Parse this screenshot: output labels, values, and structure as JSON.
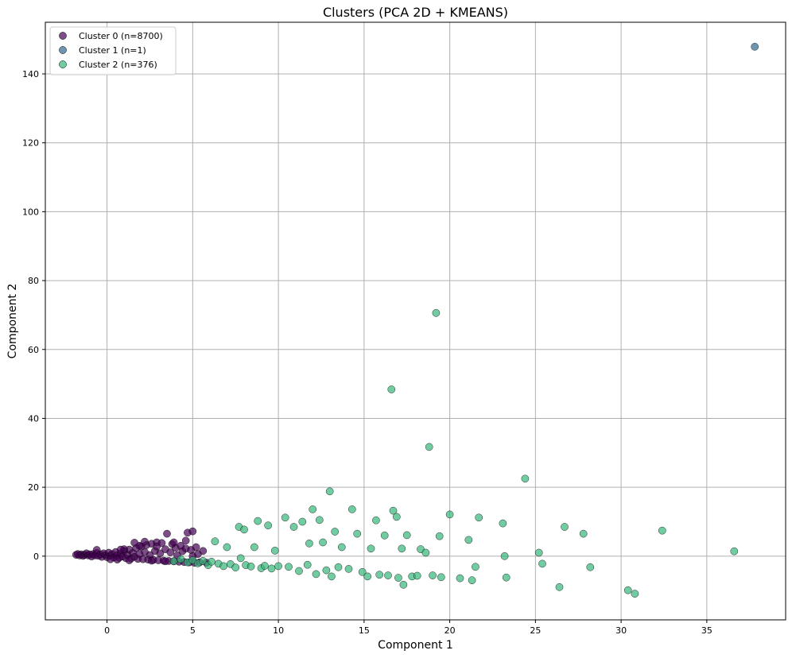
{
  "chart_data": {
    "type": "scatter",
    "title": "Clusters (PCA 2D + KMEANS)",
    "xlabel": "Component 1",
    "ylabel": "Component 2",
    "xlim": [
      -3.6,
      39.6
    ],
    "ylim": [
      -18.5,
      155
    ],
    "xticks": [
      0,
      5,
      10,
      15,
      20,
      25,
      30,
      35
    ],
    "yticks": [
      0,
      20,
      40,
      60,
      80,
      100,
      120,
      140
    ],
    "grid": true,
    "legend_position": "top-left",
    "series": [
      {
        "name": "Cluster 0 (n=8700)",
        "color": "#440154",
        "points": [
          [
            -1.8,
            0.4
          ],
          [
            -1.7,
            0.6
          ],
          [
            -1.6,
            0.2
          ],
          [
            -1.5,
            0.5
          ],
          [
            -1.4,
            0.1
          ],
          [
            -1.3,
            0.4
          ],
          [
            -1.2,
            0.8
          ],
          [
            -1.1,
            0.2
          ],
          [
            -1.0,
            0.5
          ],
          [
            -0.9,
            -0.1
          ],
          [
            -0.8,
            0.6
          ],
          [
            -0.7,
            0.2
          ],
          [
            -0.6,
            0.9
          ],
          [
            -0.5,
            0.1
          ],
          [
            -0.4,
            0.5
          ],
          [
            -0.3,
            -0.2
          ],
          [
            -0.2,
            0.8
          ],
          [
            -0.1,
            0.3
          ],
          [
            0.0,
            -0.3
          ],
          [
            0.1,
            1.0
          ],
          [
            0.2,
            0.1
          ],
          [
            0.3,
            0.6
          ],
          [
            0.4,
            -0.4
          ],
          [
            0.5,
            1.2
          ],
          [
            0.6,
            0.2
          ],
          [
            0.7,
            -0.5
          ],
          [
            0.8,
            0.8
          ],
          [
            0.9,
            -0.1
          ],
          [
            1.0,
            1.5
          ],
          [
            1.1,
            -0.6
          ],
          [
            1.2,
            0.4
          ],
          [
            1.3,
            1.9
          ],
          [
            1.4,
            -0.7
          ],
          [
            1.5,
            0.9
          ],
          [
            1.6,
            -0.2
          ],
          [
            1.7,
            2.3
          ],
          [
            1.8,
            -0.8
          ],
          [
            1.9,
            0.6
          ],
          [
            2.0,
            2.8
          ],
          [
            2.1,
            -0.9
          ],
          [
            2.2,
            1.2
          ],
          [
            2.3,
            3.2
          ],
          [
            2.4,
            -1.0
          ],
          [
            2.5,
            0.3
          ],
          [
            2.6,
            3.6
          ],
          [
            2.7,
            -1.1
          ],
          [
            2.8,
            1.5
          ],
          [
            2.9,
            4.0
          ],
          [
            3.0,
            -1.2
          ],
          [
            3.1,
            0.8
          ],
          [
            3.2,
            3.8
          ],
          [
            3.3,
            -1.3
          ],
          [
            3.4,
            2.0
          ],
          [
            3.5,
            6.5
          ],
          [
            3.6,
            -1.4
          ],
          [
            3.7,
            1.1
          ],
          [
            3.8,
            3.5
          ],
          [
            3.9,
            -1.5
          ],
          [
            4.0,
            2.4
          ],
          [
            4.1,
            0.2
          ],
          [
            4.2,
            -1.6
          ],
          [
            4.3,
            3.0
          ],
          [
            4.4,
            1.4
          ],
          [
            4.5,
            -1.7
          ],
          [
            4.6,
            2.2
          ],
          [
            4.7,
            6.8
          ],
          [
            4.8,
            -1.8
          ],
          [
            4.9,
            1.8
          ],
          [
            5.0,
            7.2
          ],
          [
            5.1,
            -1.9
          ],
          [
            5.2,
            2.6
          ],
          [
            5.3,
            0.6
          ],
          [
            5.4,
            -1.8
          ],
          [
            5.6,
            1.5
          ],
          [
            5.8,
            -1.9
          ],
          [
            -0.6,
            1.8
          ],
          [
            0.2,
            -0.9
          ],
          [
            1.0,
            2.0
          ],
          [
            1.6,
            3.9
          ],
          [
            2.2,
            4.2
          ],
          [
            0.6,
            -1.0
          ],
          [
            1.3,
            -1.2
          ],
          [
            2.6,
            -1.3
          ],
          [
            3.4,
            -1.5
          ],
          [
            0.8,
            1.9
          ],
          [
            1.9,
            3.0
          ],
          [
            2.9,
            2.8
          ],
          [
            3.9,
            4.0
          ],
          [
            4.6,
            4.5
          ],
          [
            5.0,
            0.0
          ]
        ]
      },
      {
        "name": "Cluster 1 (n=1)",
        "color": "#31688e",
        "points": [
          [
            37.8,
            147.9
          ]
        ]
      },
      {
        "name": "Cluster 2 (n=376)",
        "color": "#35b779",
        "points": [
          [
            3.9,
            -1.5
          ],
          [
            4.3,
            -0.9
          ],
          [
            4.7,
            -1.8
          ],
          [
            5.0,
            -1.2
          ],
          [
            5.3,
            -2.1
          ],
          [
            5.6,
            -1.4
          ],
          [
            5.9,
            -2.6
          ],
          [
            6.1,
            -1.6
          ],
          [
            6.3,
            4.3
          ],
          [
            6.5,
            -2.2
          ],
          [
            6.8,
            -2.9
          ],
          [
            7.0,
            2.6
          ],
          [
            7.2,
            -2.3
          ],
          [
            7.5,
            -3.3
          ],
          [
            7.7,
            8.5
          ],
          [
            7.8,
            -0.6
          ],
          [
            8.0,
            7.7
          ],
          [
            8.1,
            -2.6
          ],
          [
            8.4,
            -3.0
          ],
          [
            8.6,
            2.6
          ],
          [
            8.8,
            10.2
          ],
          [
            9.0,
            -3.5
          ],
          [
            9.2,
            -2.8
          ],
          [
            9.4,
            8.9
          ],
          [
            9.6,
            -3.6
          ],
          [
            9.8,
            1.6
          ],
          [
            10.0,
            -2.9
          ],
          [
            10.4,
            11.2
          ],
          [
            10.6,
            -3.1
          ],
          [
            10.9,
            8.5
          ],
          [
            11.2,
            -4.3
          ],
          [
            11.4,
            10.0
          ],
          [
            11.7,
            -2.5
          ],
          [
            11.8,
            3.7
          ],
          [
            12.0,
            13.6
          ],
          [
            12.2,
            -5.2
          ],
          [
            12.4,
            10.5
          ],
          [
            12.6,
            4.0
          ],
          [
            12.8,
            -4.1
          ],
          [
            13.0,
            18.8
          ],
          [
            13.1,
            -5.9
          ],
          [
            13.3,
            7.1
          ],
          [
            13.5,
            -3.2
          ],
          [
            13.7,
            2.6
          ],
          [
            14.1,
            -3.7
          ],
          [
            14.3,
            13.6
          ],
          [
            14.6,
            6.5
          ],
          [
            14.9,
            -4.6
          ],
          [
            15.2,
            -5.9
          ],
          [
            15.4,
            2.2
          ],
          [
            15.7,
            10.4
          ],
          [
            15.9,
            -5.4
          ],
          [
            16.2,
            6.0
          ],
          [
            16.4,
            -5.6
          ],
          [
            16.6,
            48.4
          ],
          [
            16.7,
            13.2
          ],
          [
            16.9,
            11.4
          ],
          [
            17.0,
            -6.3
          ],
          [
            17.2,
            2.2
          ],
          [
            17.3,
            -8.3
          ],
          [
            17.5,
            6.1
          ],
          [
            17.8,
            -5.9
          ],
          [
            18.1,
            -5.7
          ],
          [
            18.3,
            2.0
          ],
          [
            18.6,
            1.0
          ],
          [
            18.8,
            31.7
          ],
          [
            19.0,
            -5.6
          ],
          [
            19.2,
            70.6
          ],
          [
            19.4,
            5.8
          ],
          [
            19.5,
            -6.1
          ],
          [
            20.0,
            12.1
          ],
          [
            20.6,
            -6.4
          ],
          [
            21.1,
            4.7
          ],
          [
            21.3,
            -7.0
          ],
          [
            21.7,
            11.2
          ],
          [
            21.5,
            -3.1
          ],
          [
            23.1,
            9.5
          ],
          [
            23.2,
            0.0
          ],
          [
            23.3,
            -6.2
          ],
          [
            24.4,
            22.5
          ],
          [
            25.2,
            1.0
          ],
          [
            25.4,
            -2.2
          ],
          [
            26.4,
            -9.0
          ],
          [
            26.7,
            8.5
          ],
          [
            27.8,
            6.5
          ],
          [
            28.2,
            -3.2
          ],
          [
            30.4,
            -9.9
          ],
          [
            30.8,
            -10.9
          ],
          [
            32.4,
            7.4
          ],
          [
            36.6,
            1.4
          ]
        ]
      }
    ]
  }
}
